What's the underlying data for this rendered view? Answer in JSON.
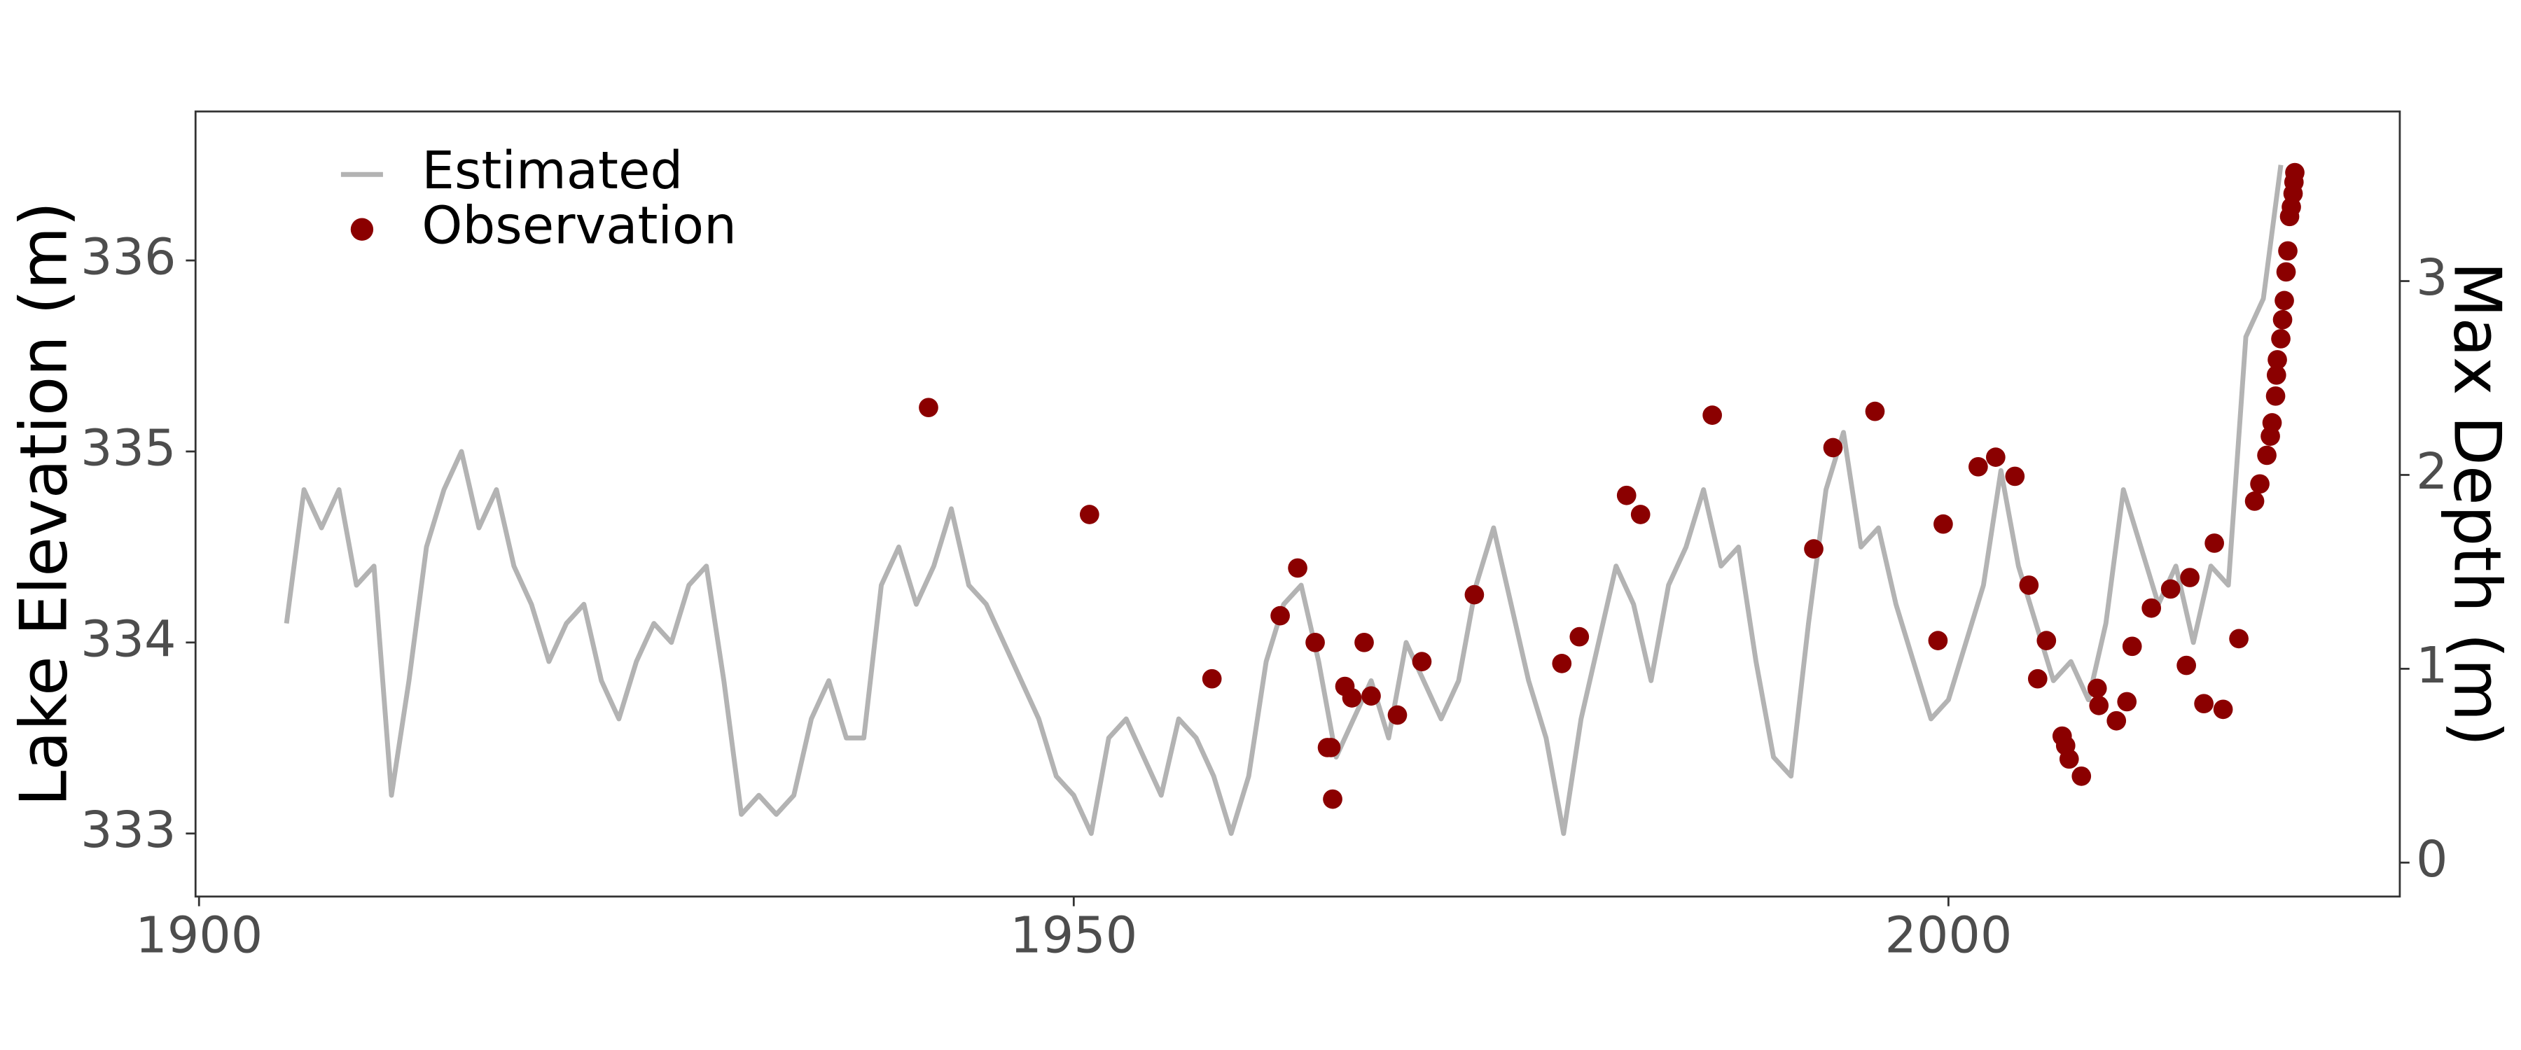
{
  "chart_data": {
    "type": "line",
    "ylabel": "Lake Elevation (m)",
    "y2label": "Max Depth (m)",
    "xlim": [
      1899.8,
      2025.8
    ],
    "xticks": [
      1900,
      1950,
      2000
    ],
    "ylim": [
      332.67,
      336.78
    ],
    "yticks": [
      333,
      334,
      335,
      336
    ],
    "y2lim": [
      -0.175,
      3.875
    ],
    "y2ticks": [
      0,
      1,
      2,
      3
    ],
    "legend": "top-left",
    "series": [
      {
        "name": "Estimated",
        "type": "line",
        "color": "#b3b3b3",
        "x": [
          1905,
          1906,
          1907,
          1908,
          1909,
          1910,
          1911,
          1912,
          1913,
          1914,
          1915,
          1916,
          1917,
          1918,
          1919,
          1920,
          1921,
          1922,
          1923,
          1924,
          1925,
          1926,
          1927,
          1928,
          1929,
          1930,
          1931,
          1932,
          1933,
          1934,
          1935,
          1936,
          1937,
          1938,
          1939,
          1940,
          1941,
          1942,
          1943,
          1944,
          1945,
          1946,
          1947,
          1948,
          1949,
          1950,
          1951,
          1952,
          1953,
          1954,
          1955,
          1956,
          1957,
          1958,
          1959,
          1960,
          1961,
          1962,
          1963,
          1964,
          1965,
          1966,
          1967,
          1968,
          1969,
          1970,
          1971,
          1972,
          1973,
          1974,
          1975,
          1976,
          1977,
          1978,
          1979,
          1980,
          1981,
          1982,
          1983,
          1984,
          1985,
          1986,
          1987,
          1988,
          1989,
          1990,
          1991,
          1992,
          1993,
          1994,
          1995,
          1996,
          1997,
          1998,
          1999,
          2000,
          2001,
          2002,
          2003,
          2004,
          2005,
          2006,
          2007,
          2008,
          2009,
          2010,
          2011,
          2012,
          2013,
          2014,
          2015,
          2016,
          2017,
          2018,
          2019
        ],
        "values": [
          334.1,
          334.8,
          334.6,
          334.8,
          334.3,
          334.4,
          333.2,
          333.8,
          334.5,
          334.8,
          335.0,
          334.6,
          334.8,
          334.4,
          334.2,
          333.9,
          334.1,
          334.2,
          333.8,
          333.6,
          333.9,
          334.1,
          334.0,
          334.3,
          334.4,
          333.8,
          333.1,
          333.2,
          333.1,
          333.2,
          333.6,
          333.8,
          333.5,
          333.5,
          334.3,
          334.5,
          334.2,
          334.4,
          334.7,
          334.3,
          334.2,
          334.0,
          333.8,
          333.6,
          333.3,
          333.2,
          333.0,
          333.5,
          333.6,
          333.4,
          333.2,
          333.6,
          333.5,
          333.3,
          333.0,
          333.3,
          333.9,
          334.2,
          334.3,
          333.9,
          333.4,
          333.6,
          333.8,
          333.5,
          334.0,
          333.8,
          333.6,
          333.8,
          334.3,
          334.6,
          334.2,
          333.8,
          333.5,
          333.0,
          333.6,
          334.0,
          334.4,
          334.2,
          333.8,
          334.3,
          334.5,
          334.8,
          334.4,
          334.5,
          333.9,
          333.4,
          333.3,
          334.1,
          334.8,
          335.1,
          334.5,
          334.6,
          334.2,
          333.9,
          333.6,
          333.7,
          334.0,
          334.3,
          334.9,
          334.4,
          334.1,
          333.8,
          333.9,
          333.7,
          334.1,
          334.8,
          334.5,
          334.2,
          334.4,
          334.0,
          334.4,
          334.3,
          335.6,
          335.8,
          336.5
        ]
      },
      {
        "name": "Observation",
        "type": "scatter",
        "color": "#8b0000",
        "x": [
          1941.7,
          1950.9,
          1957.9,
          1961.8,
          1962.8,
          1963.8,
          1964.5,
          1964.7,
          1964.8,
          1965.5,
          1965.9,
          1966.6,
          1967.0,
          1968.5,
          1969.9,
          1972.9,
          1977.9,
          1978.9,
          1981.6,
          1982.4,
          1986.5,
          1992.3,
          1993.4,
          1995.8,
          1999.4,
          1999.7,
          2001.7,
          2002.7,
          2003.8,
          2004.6,
          2005.1,
          2005.6,
          2006.5,
          2006.7,
          2006.9,
          2007.6,
          2008.5,
          2008.6,
          2009.6,
          2010.2,
          2010.5,
          2011.6,
          2012.7,
          2013.6,
          2013.8,
          2014.6,
          2015.2,
          2015.7,
          2016.6,
          2017.5,
          2017.8,
          2018.2,
          2018.4,
          2018.5,
          2018.7,
          2018.75,
          2018.8,
          2019.0,
          2019.1,
          2019.2,
          2019.3,
          2019.4,
          2019.5,
          2019.6,
          2019.7,
          2019.75,
          2019.8
        ],
        "values": [
          335.23,
          334.67,
          333.81,
          334.14,
          334.39,
          334.0,
          333.45,
          333.45,
          333.18,
          333.77,
          333.71,
          334.0,
          333.72,
          333.62,
          333.9,
          334.25,
          333.89,
          334.03,
          334.77,
          334.67,
          335.19,
          334.49,
          335.02,
          335.21,
          334.01,
          334.62,
          334.92,
          334.97,
          334.87,
          334.3,
          333.81,
          334.01,
          333.51,
          333.46,
          333.39,
          333.3,
          333.76,
          333.67,
          333.59,
          333.69,
          333.98,
          334.18,
          334.28,
          333.88,
          334.34,
          333.68,
          334.52,
          333.65,
          334.02,
          334.74,
          334.83,
          334.98,
          335.08,
          335.15,
          335.29,
          335.4,
          335.48,
          335.59,
          335.69,
          335.79,
          335.94,
          336.05,
          336.23,
          336.28,
          336.35,
          336.41,
          336.46
        ]
      }
    ]
  }
}
